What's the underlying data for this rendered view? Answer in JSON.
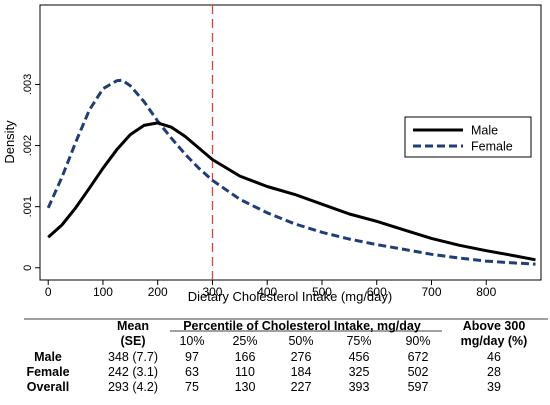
{
  "chart_data": {
    "type": "line",
    "xlabel": "Dietary Cholesterol Intake (mg/day)",
    "ylabel": "Density",
    "xlim": [
      -15,
      900
    ],
    "ylim": [
      -0.0002,
      0.0043
    ],
    "x_ticks": [
      0,
      100,
      200,
      300,
      400,
      500,
      600,
      700,
      800
    ],
    "x_tick_labels": [
      "0",
      "100",
      "200",
      "300",
      "400",
      "500",
      "600",
      "700",
      "800"
    ],
    "y_ticks": [
      0,
      0.001,
      0.002,
      0.003
    ],
    "y_tick_labels": [
      "0",
      ".001",
      ".002",
      ".003"
    ],
    "grid": false,
    "legend_position": "right",
    "reference_line": {
      "x": 300,
      "color": "#e0413c",
      "style": "dashed"
    },
    "series": [
      {
        "name": "Male",
        "color": "#000000",
        "style": "solid",
        "x": [
          0,
          25,
          50,
          75,
          100,
          125,
          150,
          175,
          200,
          225,
          250,
          275,
          300,
          350,
          400,
          450,
          500,
          550,
          600,
          650,
          700,
          750,
          800,
          850,
          890
        ],
        "y": [
          0.0005,
          0.0007,
          0.00098,
          0.0013,
          0.00163,
          0.00193,
          0.00218,
          0.00233,
          0.00237,
          0.0023,
          0.00215,
          0.00196,
          0.00177,
          0.0015,
          0.00133,
          0.0012,
          0.00104,
          0.00088,
          0.00076,
          0.00062,
          0.00048,
          0.00037,
          0.00028,
          0.0002,
          0.00013
        ]
      },
      {
        "name": "Female",
        "color": "#1f3e78",
        "style": "dashed",
        "x": [
          0,
          25,
          50,
          75,
          100,
          125,
          135,
          150,
          175,
          200,
          225,
          250,
          275,
          300,
          350,
          400,
          450,
          500,
          550,
          600,
          650,
          700,
          750,
          800,
          850,
          890
        ],
        "y": [
          0.00098,
          0.00148,
          0.00205,
          0.00258,
          0.00293,
          0.00306,
          0.00307,
          0.00298,
          0.00272,
          0.0024,
          0.00212,
          0.00186,
          0.00163,
          0.00143,
          0.00112,
          0.0009,
          0.00072,
          0.00058,
          0.00047,
          0.00038,
          0.0003,
          0.00022,
          0.00016,
          0.00011,
          8e-05,
          6e-05
        ]
      }
    ]
  },
  "table": {
    "col_mean": "Mean",
    "col_mean_sub": "(SE)",
    "col_percentile": "Percentile of Cholesterol Intake, mg/day",
    "percentiles": [
      "10%",
      "25%",
      "50%",
      "75%",
      "90%"
    ],
    "col_above": "Above 300",
    "col_above_sub": "mg/day (%)",
    "rows": [
      {
        "label": "Male",
        "mean": "348 (7.7)",
        "p": [
          "97",
          "166",
          "276",
          "456",
          "672"
        ],
        "above": "46"
      },
      {
        "label": "Female",
        "mean": "242 (3.1)",
        "p": [
          "63",
          "110",
          "184",
          "325",
          "502"
        ],
        "above": "28"
      },
      {
        "label": "Overall",
        "mean": "293 (4.2)",
        "p": [
          "75",
          "130",
          "227",
          "393",
          "597"
        ],
        "above": "39"
      }
    ]
  }
}
